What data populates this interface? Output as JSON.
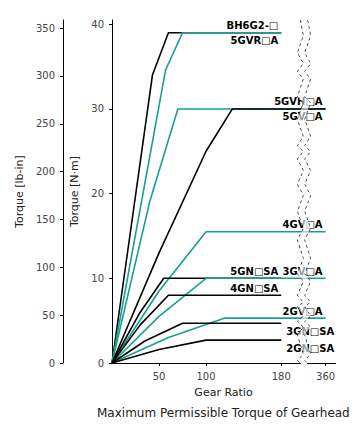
{
  "chart_data": {
    "type": "line",
    "title": "Maximum Permissible Torque of Gearhead",
    "x_label": "Gear Ratio",
    "y_label": "Torque [N·m]",
    "y2_label": "Torque [lb-in]",
    "xlim": [
      0,
      370
    ],
    "xticks": [
      50,
      100,
      180,
      360
    ],
    "xbreak": [
      200,
      340
    ],
    "ylim": [
      0,
      40.5
    ],
    "yticks": [
      0,
      10,
      20,
      30,
      40
    ],
    "y2lim": [
      0,
      358.5
    ],
    "y2ticks": [
      0,
      50,
      100,
      150,
      200,
      250,
      300,
      350
    ],
    "grid": false,
    "marker": "none",
    "series": [
      {
        "name": "BH6G2-□",
        "color": "#000000",
        "x": [
          0,
          43,
          60,
          180
        ],
        "values": [
          0,
          34,
          39,
          39
        ]
      },
      {
        "name": "5GVR□A",
        "color": "#17a08f",
        "x": [
          0,
          57,
          75,
          180
        ],
        "values": [
          0,
          34.6,
          39,
          39
        ]
      },
      {
        "name": "5GVH□A",
        "color": "#17a08f",
        "x": [
          0,
          40,
          70,
          360
        ],
        "values": [
          0,
          19,
          30,
          30
        ]
      },
      {
        "name": "5GV□A",
        "color": "#000000",
        "x": [
          0,
          50,
          100,
          128,
          360
        ],
        "values": [
          0,
          13,
          25,
          30,
          30
        ]
      },
      {
        "name": "4GV□A",
        "color": "#17a08f",
        "x": [
          0,
          50,
          100,
          360
        ],
        "values": [
          0,
          8.5,
          15.5,
          15.5
        ]
      },
      {
        "name": "5GN□SA",
        "color": "#000000",
        "x": [
          0,
          30,
          55,
          180
        ],
        "values": [
          0,
          6,
          10,
          10
        ]
      },
      {
        "name": "3GV□A",
        "color": "#17a08f",
        "x": [
          0,
          50,
          100,
          360
        ],
        "values": [
          0,
          5.5,
          10,
          10
        ]
      },
      {
        "name": "4GN□SA",
        "color": "#000000",
        "x": [
          0,
          30,
          60,
          180
        ],
        "values": [
          0,
          4.5,
          8,
          8
        ]
      },
      {
        "name": "2GV□A",
        "color": "#17a08f",
        "x": [
          0,
          60,
          120,
          360
        ],
        "values": [
          0,
          3,
          5.3,
          5.3
        ]
      },
      {
        "name": "3GN□SA",
        "color": "#000000",
        "x": [
          0,
          35,
          75,
          180
        ],
        "values": [
          0,
          2.6,
          4.7,
          4.7
        ]
      },
      {
        "name": "2GN□SA",
        "color": "#000000",
        "x": [
          0,
          50,
          100,
          180
        ],
        "values": [
          0,
          1.6,
          2.7,
          2.7
        ]
      }
    ]
  }
}
